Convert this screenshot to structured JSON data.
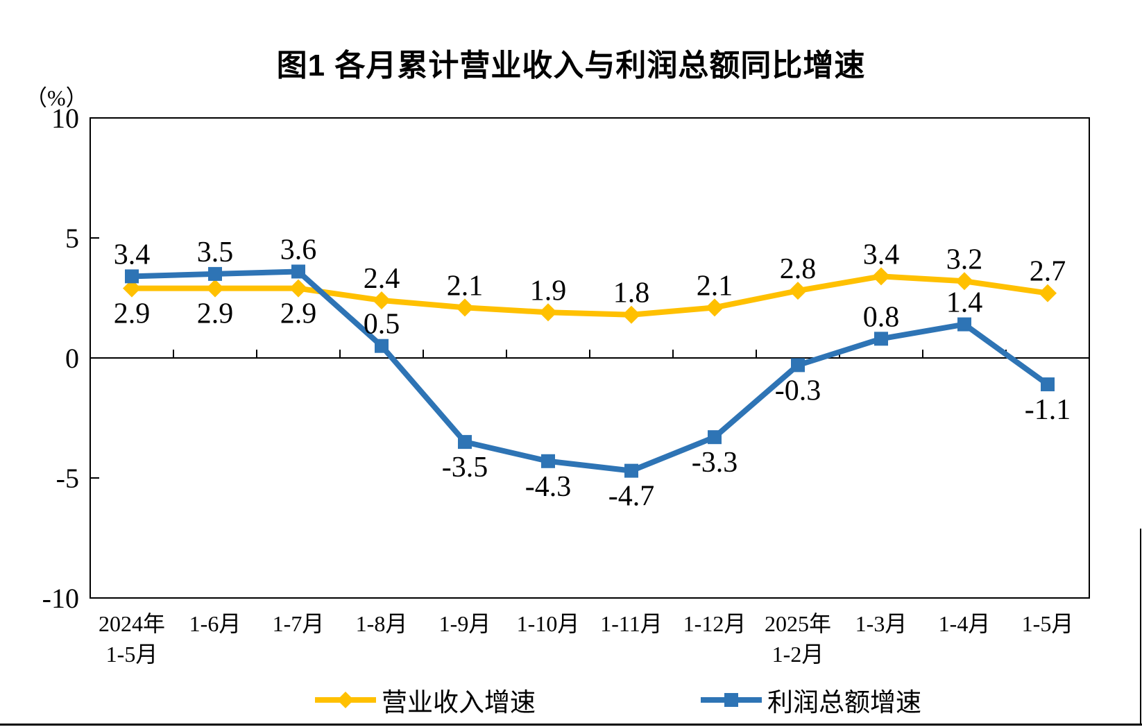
{
  "page": {
    "title_label": "图1 各月累计营业收入与利润总额同比增速",
    "unit_label": "（%）"
  },
  "chart_data": {
    "type": "line",
    "title": "图1 各月累计营业收入与利润总额同比增速",
    "ylabel": "（%）",
    "xlabel": "",
    "ylim": [
      -10,
      10
    ],
    "yticks": [
      10,
      5,
      0,
      -5,
      -10
    ],
    "grid": false,
    "legend_position": "bottom",
    "categories": [
      [
        "2024年",
        "1-5月"
      ],
      [
        "1-6月"
      ],
      [
        "1-7月"
      ],
      [
        "1-8月"
      ],
      [
        "1-9月"
      ],
      [
        "1-10月"
      ],
      [
        "1-11月"
      ],
      [
        "1-12月"
      ],
      [
        "2025年",
        "1-2月"
      ],
      [
        "1-3月"
      ],
      [
        "1-4月"
      ],
      [
        "1-5月"
      ]
    ],
    "series": [
      {
        "name": "营业收入增速",
        "color": "#FFC000",
        "marker": "diamond",
        "values": [
          2.9,
          2.9,
          2.9,
          2.4,
          2.1,
          1.9,
          1.8,
          2.1,
          2.8,
          3.4,
          3.2,
          2.7
        ],
        "label_side": [
          "below",
          "below",
          "below",
          "above",
          "above",
          "above",
          "above",
          "above",
          "above",
          "above",
          "above",
          "above"
        ]
      },
      {
        "name": "利润总额增速",
        "color": "#2E74B5",
        "marker": "square",
        "values": [
          3.4,
          3.5,
          3.6,
          0.5,
          -3.5,
          -4.3,
          -4.7,
          -3.3,
          -0.3,
          0.8,
          1.4,
          -1.1
        ],
        "label_side": [
          "above",
          "above",
          "above",
          "above",
          "below",
          "below",
          "below",
          "below",
          "below",
          "above",
          "above",
          "below"
        ]
      }
    ],
    "axis_color": "#000000",
    "label_color": "#000000"
  }
}
